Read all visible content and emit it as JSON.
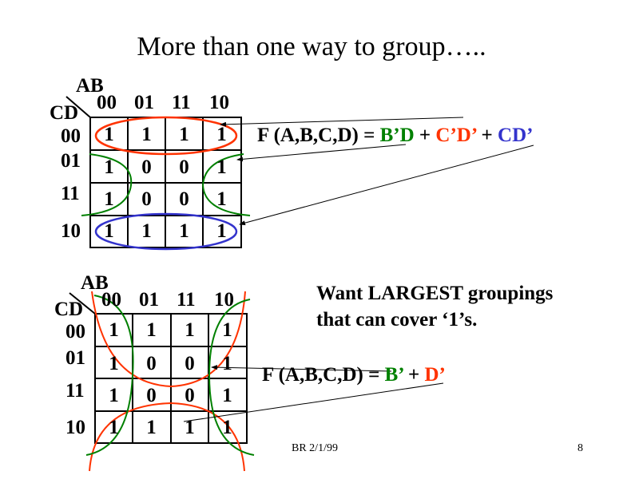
{
  "title": "More than one way to group…..",
  "kmap_top": {
    "row_var": "CD",
    "col_var": "AB",
    "col_labels": [
      "00",
      "01",
      "11",
      "10"
    ],
    "row_labels": [
      "00",
      "01",
      "11",
      "10"
    ],
    "cells": [
      [
        "1",
        "1",
        "1",
        "1"
      ],
      [
        "1",
        "0",
        "0",
        "1"
      ],
      [
        "1",
        "0",
        "0",
        "1"
      ],
      [
        "1",
        "1",
        "1",
        "1"
      ]
    ],
    "equation": {
      "lhs": "F (A,B,C,D) = ",
      "term1": "B’D",
      "plus1": " + ",
      "term2": "C’D’",
      "plus2": " + ",
      "term3": "CD’"
    }
  },
  "kmap_bottom": {
    "row_var": "CD",
    "col_var": "AB",
    "col_labels": [
      "00",
      "01",
      "11",
      "10"
    ],
    "row_labels": [
      "00",
      "01",
      "11",
      "10"
    ],
    "cells": [
      [
        "1",
        "1",
        "1",
        "1"
      ],
      [
        "1",
        "0",
        "0",
        "1"
      ],
      [
        "1",
        "0",
        "0",
        "1"
      ],
      [
        "1",
        "1",
        "1",
        "1"
      ]
    ],
    "equation": {
      "lhs": "F (A,B,C,D) = ",
      "term1": "B’",
      "plus1": " + ",
      "term2": "D’"
    }
  },
  "note": [
    "Want LARGEST groupings",
    "that can cover ‘1’s."
  ],
  "footer": {
    "author_date": "BR 2/1/99",
    "page_number": "8"
  },
  "colors": {
    "green": "#008000",
    "red": "#ff3300",
    "blue": "#3333cc"
  }
}
